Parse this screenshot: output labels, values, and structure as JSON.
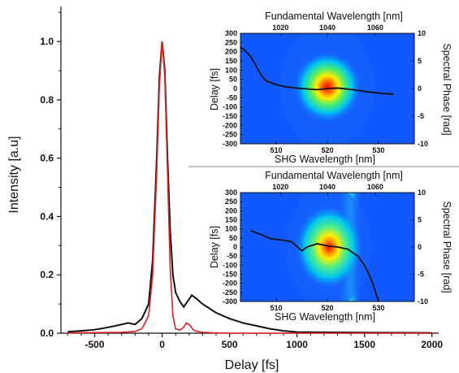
{
  "chart_data": [
    {
      "type": "line",
      "xlabel": "Delay  [fs]",
      "ylabel": "Intensity  [a.u]",
      "xlim": [
        -750,
        2050
      ],
      "ylim": [
        0,
        1.12
      ],
      "xticks": [
        -500,
        0,
        500,
        1000,
        1500,
        2000
      ],
      "yticks": [
        0.0,
        0.2,
        0.4,
        0.6,
        0.8,
        1.0
      ],
      "grid": false,
      "colors": {
        "black_trace": "#111111",
        "red_trace": "#dd2222"
      },
      "series": [
        {
          "color": "#111111",
          "x": [
            -700,
            -600,
            -500,
            -400,
            -300,
            -250,
            -200,
            -150,
            -100,
            -70,
            -40,
            -20,
            0,
            20,
            40,
            60,
            80,
            100,
            130,
            160,
            190,
            220,
            250,
            300,
            400,
            500,
            600,
            700,
            800,
            900,
            1000,
            1500,
            2000
          ],
          "y": [
            0.005,
            0.008,
            0.012,
            0.02,
            0.03,
            0.035,
            0.03,
            0.05,
            0.1,
            0.25,
            0.6,
            0.88,
            1.0,
            0.9,
            0.6,
            0.35,
            0.2,
            0.14,
            0.11,
            0.09,
            0.11,
            0.13,
            0.12,
            0.1,
            0.07,
            0.05,
            0.035,
            0.025,
            0.015,
            0.008,
            0.004,
            0.002,
            0.001
          ]
        },
        {
          "color": "#dd2222",
          "x": [
            -700,
            -300,
            -200,
            -150,
            -100,
            -70,
            -40,
            -20,
            0,
            20,
            40,
            60,
            80,
            100,
            130,
            160,
            180,
            200,
            230,
            260,
            300,
            400,
            500,
            1000,
            2000
          ],
          "y": [
            0.001,
            0.003,
            0.006,
            0.015,
            0.06,
            0.2,
            0.55,
            0.85,
            1.0,
            0.88,
            0.55,
            0.22,
            0.06,
            0.015,
            0.01,
            0.02,
            0.035,
            0.03,
            0.012,
            0.006,
            0.003,
            0.001,
            0.0,
            0.0,
            0.0
          ]
        }
      ]
    },
    {
      "type": "heatmap",
      "title": "Fundamental Wavelength  [nm]",
      "xlabel": "SHG Wavelength  [nm]",
      "ylabel": "Delay  [fs]",
      "y2label": "Spectral Phase  [rad]",
      "x_ticks": [
        510,
        520,
        530
      ],
      "x2_ticks": [
        1020,
        1040,
        1060
      ],
      "y_ticks": [
        300,
        250,
        200,
        150,
        100,
        50,
        0,
        -50,
        -100,
        -150,
        -200,
        -250,
        -300
      ],
      "y2_ticks": [
        10,
        5,
        0,
        -5,
        -10
      ],
      "xlim": [
        503,
        537
      ],
      "ylim": [
        -300,
        300
      ],
      "y2lim": [
        -10,
        10
      ],
      "phase_series": {
        "color": "#111111",
        "x": [
          503,
          504,
          505,
          506,
          507,
          508,
          510,
          512,
          515,
          518,
          520,
          522,
          525,
          528,
          531,
          533
        ],
        "y": [
          7.5,
          6.8,
          5.8,
          4.2,
          2.5,
          1.4,
          0.7,
          0.3,
          0.0,
          -0.2,
          0.0,
          0.1,
          -0.2,
          -0.6,
          -0.9,
          -1.0
        ]
      }
    },
    {
      "type": "heatmap",
      "title": "Fundamental Wavelength  [nm]",
      "xlabel": "SHG Wavelength  [nm]",
      "ylabel": "Delay  [fs]",
      "y2label": "Spectral Phase  [rad]",
      "x_ticks": [
        510,
        520,
        530
      ],
      "x2_ticks": [
        1020,
        1040,
        1060
      ],
      "y_ticks": [
        300,
        250,
        200,
        150,
        100,
        50,
        0,
        -50,
        -100,
        -150,
        -200,
        -250,
        -300
      ],
      "y2_ticks": [
        10,
        5,
        0,
        -5,
        -10
      ],
      "xlim": [
        503,
        537
      ],
      "ylim": [
        -300,
        300
      ],
      "y2lim": [
        -10,
        10
      ],
      "phase_series": {
        "color": "#111111",
        "x": [
          505,
          507,
          509,
          511,
          513,
          515,
          516,
          518,
          520,
          522,
          524,
          526,
          527,
          528,
          529,
          530
        ],
        "y": [
          3.0,
          2.3,
          1.5,
          1.3,
          1.0,
          -0.7,
          0.0,
          0.6,
          0.2,
          0.0,
          -0.4,
          -1.7,
          -3.0,
          -4.7,
          -7.0,
          -10.0
        ]
      }
    }
  ]
}
